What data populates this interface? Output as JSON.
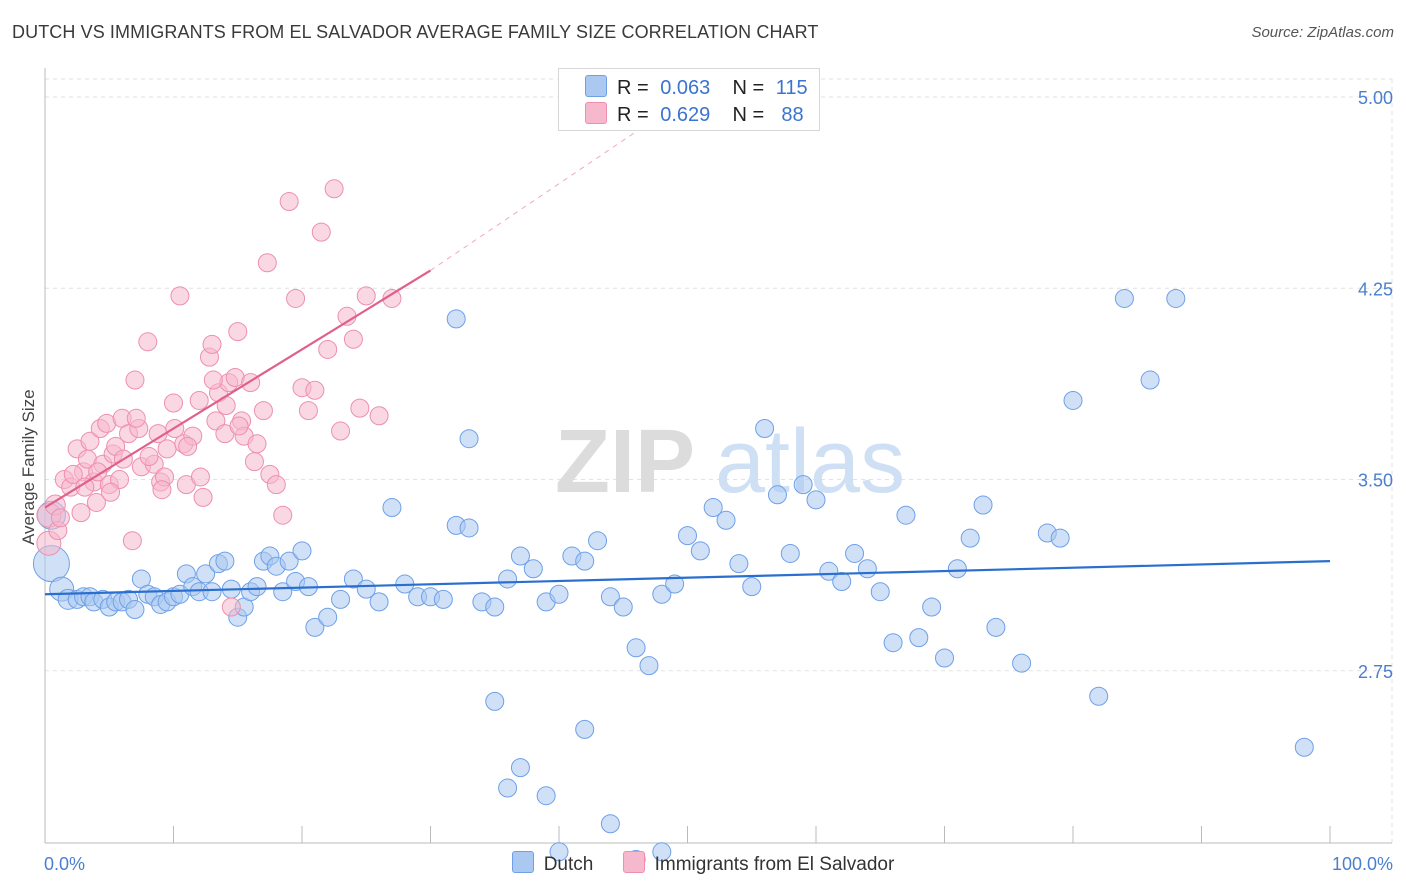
{
  "title": "DUTCH VS IMMIGRANTS FROM EL SALVADOR AVERAGE FAMILY SIZE CORRELATION CHART",
  "source": "Source: ZipAtlas.com",
  "watermark": {
    "zip": "ZIP",
    "atlas": "atlas"
  },
  "legend_stats": [
    {
      "r_label": "R =",
      "r_value": "0.063",
      "n_label": "N =",
      "n_value": "115",
      "color": "#aac8f0"
    },
    {
      "r_label": "R =",
      "r_value": "0.629",
      "n_label": "N =",
      "n_value": "88",
      "color": "#f6b8cc"
    }
  ],
  "bottom_legend": [
    {
      "label": "Dutch",
      "color": "#aac8f0"
    },
    {
      "label": "Immigrants from El Salvador",
      "color": "#f6b8cc"
    }
  ],
  "chart_data": {
    "type": "scatter",
    "title": "DUTCH VS IMMIGRANTS FROM EL SALVADOR AVERAGE FAMILY SIZE CORRELATION CHART",
    "xlabel": "",
    "ylabel": "Average Family Size",
    "x_tick_labels": [
      "0.0%",
      "100.0%"
    ],
    "y_ticks": [
      2.75,
      3.5,
      4.25,
      5.0
    ],
    "y_tick_labels": [
      "2.75",
      "3.50",
      "4.25",
      "5.00"
    ],
    "xlim": [
      0,
      100
    ],
    "ylim": [
      2.0,
      5.0
    ],
    "grid": true,
    "legend_position": "top-center",
    "series": [
      {
        "name": "Dutch",
        "color": "#6ea0e8",
        "fill": "#aac8f0",
        "trend": {
          "x": [
            0,
            100
          ],
          "y": [
            3.05,
            3.18
          ],
          "color": "#2a6fcf"
        },
        "points": [
          [
            0.5,
            3.36,
            14
          ],
          [
            0.5,
            3.17,
            18
          ],
          [
            1.3,
            3.07,
            12
          ],
          [
            1.8,
            3.03,
            10
          ],
          [
            2.5,
            3.03,
            9
          ],
          [
            3.0,
            3.04,
            9
          ],
          [
            3.5,
            3.04,
            9
          ],
          [
            3.8,
            3.02,
            9
          ],
          [
            4.5,
            3.03,
            9
          ],
          [
            5.0,
            3.0,
            9
          ],
          [
            5.5,
            3.02,
            9
          ],
          [
            6.0,
            3.02,
            9
          ],
          [
            6.5,
            3.03,
            9
          ],
          [
            7.0,
            2.99,
            9
          ],
          [
            7.5,
            3.11,
            9
          ],
          [
            8.0,
            3.05,
            9
          ],
          [
            8.5,
            3.04,
            9
          ],
          [
            9.0,
            3.01,
            9
          ],
          [
            9.5,
            3.02,
            9
          ],
          [
            10.0,
            3.04,
            9
          ],
          [
            10.5,
            3.05,
            9
          ],
          [
            11.0,
            3.13,
            9
          ],
          [
            11.5,
            3.08,
            9
          ],
          [
            12.0,
            3.06,
            9
          ],
          [
            12.5,
            3.13,
            9
          ],
          [
            13.0,
            3.06,
            9
          ],
          [
            13.5,
            3.17,
            9
          ],
          [
            14.0,
            3.18,
            9
          ],
          [
            14.5,
            3.07,
            9
          ],
          [
            15.0,
            2.96,
            9
          ],
          [
            15.5,
            3.0,
            9
          ],
          [
            16.0,
            3.06,
            9
          ],
          [
            16.5,
            3.08,
            9
          ],
          [
            17.0,
            3.18,
            9
          ],
          [
            17.5,
            3.2,
            9
          ],
          [
            18.0,
            3.16,
            9
          ],
          [
            18.5,
            3.06,
            9
          ],
          [
            19.0,
            3.18,
            9
          ],
          [
            19.5,
            3.1,
            9
          ],
          [
            20.0,
            3.22,
            9
          ],
          [
            20.5,
            3.08,
            9
          ],
          [
            21.0,
            2.92,
            9
          ],
          [
            22.0,
            2.96,
            9
          ],
          [
            23.0,
            3.03,
            9
          ],
          [
            24.0,
            3.11,
            9
          ],
          [
            25.0,
            3.07,
            9
          ],
          [
            26.0,
            3.02,
            9
          ],
          [
            27.0,
            3.39,
            9
          ],
          [
            28.0,
            3.09,
            9
          ],
          [
            29.0,
            3.04,
            9
          ],
          [
            30.0,
            3.04,
            9
          ],
          [
            31.0,
            3.03,
            9
          ],
          [
            32.0,
            3.32,
            9
          ],
          [
            33.0,
            3.31,
            9
          ],
          [
            34.0,
            3.02,
            9
          ],
          [
            35.0,
            3.0,
            9
          ],
          [
            36.0,
            3.11,
            9
          ],
          [
            37.0,
            3.2,
            9
          ],
          [
            38.0,
            3.15,
            9
          ],
          [
            39.0,
            3.02,
            9
          ],
          [
            40.0,
            3.05,
            9
          ],
          [
            41.0,
            3.2,
            9
          ],
          [
            42.0,
            3.18,
            9
          ],
          [
            43.0,
            3.26,
            9
          ],
          [
            44.0,
            3.04,
            9
          ],
          [
            45.0,
            3.0,
            9
          ],
          [
            46.0,
            2.84,
            9
          ],
          [
            47.0,
            2.77,
            9
          ],
          [
            48.0,
            3.05,
            9
          ],
          [
            49.0,
            3.09,
            9
          ],
          [
            50.0,
            3.28,
            9
          ],
          [
            51.0,
            3.22,
            9
          ],
          [
            52.0,
            3.39,
            9
          ],
          [
            53.0,
            3.34,
            9
          ],
          [
            54.0,
            3.17,
            9
          ],
          [
            55.0,
            3.08,
            9
          ],
          [
            56.0,
            3.7,
            9
          ],
          [
            57.0,
            3.44,
            9
          ],
          [
            58.0,
            3.21,
            9
          ],
          [
            59.0,
            3.48,
            9
          ],
          [
            60.0,
            3.42,
            9
          ],
          [
            61.0,
            3.14,
            9
          ],
          [
            62.0,
            3.1,
            9
          ],
          [
            63.0,
            3.21,
            9
          ],
          [
            64.0,
            3.15,
            9
          ],
          [
            65.0,
            3.06,
            9
          ],
          [
            66.0,
            2.86,
            9
          ],
          [
            67.0,
            3.36,
            9
          ],
          [
            68.0,
            2.88,
            9
          ],
          [
            69.0,
            3.0,
            9
          ],
          [
            70.0,
            2.8,
            9
          ],
          [
            71.0,
            3.15,
            9
          ],
          [
            72.0,
            3.27,
            9
          ],
          [
            73.0,
            3.4,
            9
          ],
          [
            74.0,
            2.92,
            9
          ],
          [
            76.0,
            2.78,
            9
          ],
          [
            78.0,
            3.29,
            9
          ],
          [
            79.0,
            3.27,
            9
          ],
          [
            80.0,
            3.81,
            9
          ],
          [
            82.0,
            2.65,
            9
          ],
          [
            84.0,
            4.21,
            9
          ],
          [
            86.0,
            3.89,
            9
          ],
          [
            88.0,
            4.21,
            9
          ],
          [
            32.0,
            4.13,
            9
          ],
          [
            33.0,
            3.66,
            9
          ],
          [
            35.0,
            2.63,
            9
          ],
          [
            36.0,
            2.29,
            9
          ],
          [
            37.0,
            2.37,
            9
          ],
          [
            39.0,
            2.26,
            9
          ],
          [
            40.0,
            2.04,
            9
          ],
          [
            42.0,
            2.52,
            9
          ],
          [
            44.0,
            2.15,
            9
          ],
          [
            46.0,
            2.01,
            9
          ],
          [
            48.0,
            2.04,
            9
          ],
          [
            98.0,
            2.45,
            9
          ]
        ]
      },
      {
        "name": "Immigrants from El Salvador",
        "color": "#ee8fae",
        "fill": "#f6b8cc",
        "trend": {
          "x": [
            0,
            30
          ],
          "y": [
            3.39,
            4.32
          ],
          "dashed_to": [
            50,
            5.0
          ],
          "color": "#e0608a"
        },
        "points": [
          [
            0.3,
            3.36,
            12
          ],
          [
            0.3,
            3.25,
            12
          ],
          [
            0.8,
            3.4,
            10
          ],
          [
            1.0,
            3.3,
            9
          ],
          [
            1.5,
            3.5,
            9
          ],
          [
            2.0,
            3.47,
            9
          ],
          [
            2.5,
            3.62,
            9
          ],
          [
            2.8,
            3.37,
            9
          ],
          [
            3.0,
            3.53,
            9
          ],
          [
            3.3,
            3.58,
            9
          ],
          [
            3.5,
            3.65,
            9
          ],
          [
            3.8,
            3.49,
            9
          ],
          [
            4.0,
            3.41,
            9
          ],
          [
            4.3,
            3.7,
            9
          ],
          [
            4.5,
            3.56,
            9
          ],
          [
            4.8,
            3.72,
            9
          ],
          [
            5.0,
            3.48,
            9
          ],
          [
            5.3,
            3.6,
            9
          ],
          [
            5.5,
            3.63,
            9
          ],
          [
            5.8,
            3.5,
            9
          ],
          [
            6.0,
            3.74,
            9
          ],
          [
            6.5,
            3.68,
            9
          ],
          [
            6.8,
            3.26,
            9
          ],
          [
            7.0,
            3.89,
            9
          ],
          [
            7.3,
            3.7,
            9
          ],
          [
            7.5,
            3.55,
            9
          ],
          [
            8.0,
            4.04,
            9
          ],
          [
            8.5,
            3.56,
            9
          ],
          [
            8.8,
            3.68,
            9
          ],
          [
            9.0,
            3.49,
            9
          ],
          [
            9.3,
            3.51,
            9
          ],
          [
            9.5,
            3.62,
            9
          ],
          [
            10.0,
            3.8,
            9
          ],
          [
            10.5,
            4.22,
            9
          ],
          [
            10.8,
            3.64,
            9
          ],
          [
            11.0,
            3.48,
            9
          ],
          [
            11.5,
            3.67,
            9
          ],
          [
            12.0,
            3.81,
            9
          ],
          [
            12.3,
            3.43,
            9
          ],
          [
            12.8,
            3.98,
            9
          ],
          [
            13.0,
            4.03,
            9
          ],
          [
            13.3,
            3.73,
            9
          ],
          [
            13.5,
            3.84,
            9
          ],
          [
            14.0,
            3.68,
            9
          ],
          [
            14.3,
            3.88,
            9
          ],
          [
            14.5,
            3.0,
            9
          ],
          [
            14.8,
            3.9,
            9
          ],
          [
            15.0,
            4.08,
            9
          ],
          [
            15.3,
            3.73,
            9
          ],
          [
            15.5,
            3.67,
            9
          ],
          [
            16.0,
            3.88,
            9
          ],
          [
            16.3,
            3.57,
            9
          ],
          [
            16.5,
            3.64,
            9
          ],
          [
            17.0,
            3.77,
            9
          ],
          [
            17.3,
            4.35,
            9
          ],
          [
            17.5,
            3.52,
            9
          ],
          [
            18.0,
            3.48,
            9
          ],
          [
            18.5,
            3.36,
            9
          ],
          [
            19.0,
            4.59,
            9
          ],
          [
            19.5,
            4.21,
            9
          ],
          [
            20.0,
            3.86,
            9
          ],
          [
            20.5,
            3.77,
            9
          ],
          [
            21.0,
            3.85,
            9
          ],
          [
            21.5,
            4.47,
            9
          ],
          [
            22.0,
            4.01,
            9
          ],
          [
            22.5,
            4.64,
            9
          ],
          [
            23.0,
            3.69,
            9
          ],
          [
            23.5,
            4.14,
            9
          ],
          [
            24.0,
            4.05,
            9
          ],
          [
            24.5,
            3.78,
            9
          ],
          [
            25.0,
            4.22,
            9
          ],
          [
            26.0,
            3.75,
            9
          ],
          [
            27.0,
            4.21,
            9
          ],
          [
            1.2,
            3.35,
            9
          ],
          [
            2.2,
            3.52,
            9
          ],
          [
            3.1,
            3.47,
            9
          ],
          [
            4.1,
            3.53,
            9
          ],
          [
            5.1,
            3.45,
            9
          ],
          [
            6.1,
            3.58,
            9
          ],
          [
            7.1,
            3.74,
            9
          ],
          [
            8.1,
            3.59,
            9
          ],
          [
            9.1,
            3.46,
            9
          ],
          [
            10.1,
            3.7,
            9
          ],
          [
            11.1,
            3.63,
            9
          ],
          [
            12.1,
            3.51,
            9
          ],
          [
            13.1,
            3.89,
            9
          ],
          [
            14.1,
            3.79,
            9
          ],
          [
            15.1,
            3.71,
            9
          ]
        ]
      }
    ]
  }
}
